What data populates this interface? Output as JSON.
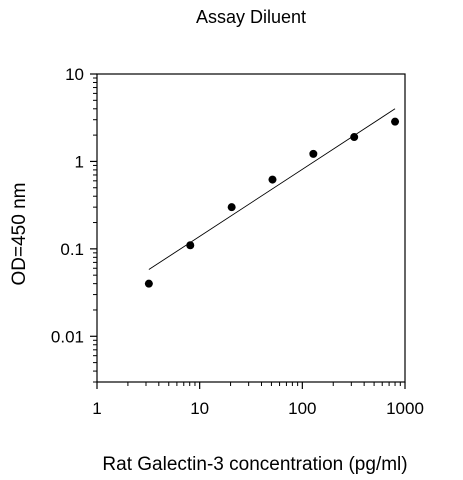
{
  "chart_data": {
    "type": "scatter",
    "title": "Assay Diluent",
    "xlabel": "Rat Galectin-3 concentration (pg/ml)",
    "ylabel": "OD=450 nm",
    "xscale": "log",
    "yscale": "log",
    "xlim": [
      1,
      1000
    ],
    "ylim": [
      0.003,
      10
    ],
    "xticks": [
      1,
      10,
      100,
      1000
    ],
    "xtick_labels": [
      "1",
      "10",
      "100",
      "1000"
    ],
    "yticks": [
      0.01,
      0.1,
      1,
      10
    ],
    "ytick_labels": [
      "0.01",
      "0.1",
      "1",
      "10"
    ],
    "grid": false,
    "legend": "none",
    "series": [
      {
        "x": [
          3.2,
          8.1,
          20.5,
          51.2,
          128,
          320,
          800
        ],
        "y": [
          0.04,
          0.11,
          0.3,
          0.62,
          1.22,
          1.9,
          2.85
        ]
      }
    ],
    "fit_line": {
      "x": [
        3.2,
        800
      ],
      "y": [
        0.058,
        4.0
      ]
    },
    "colors": {
      "points": "#000000",
      "axes": "#000000",
      "fit": "#000000"
    }
  }
}
